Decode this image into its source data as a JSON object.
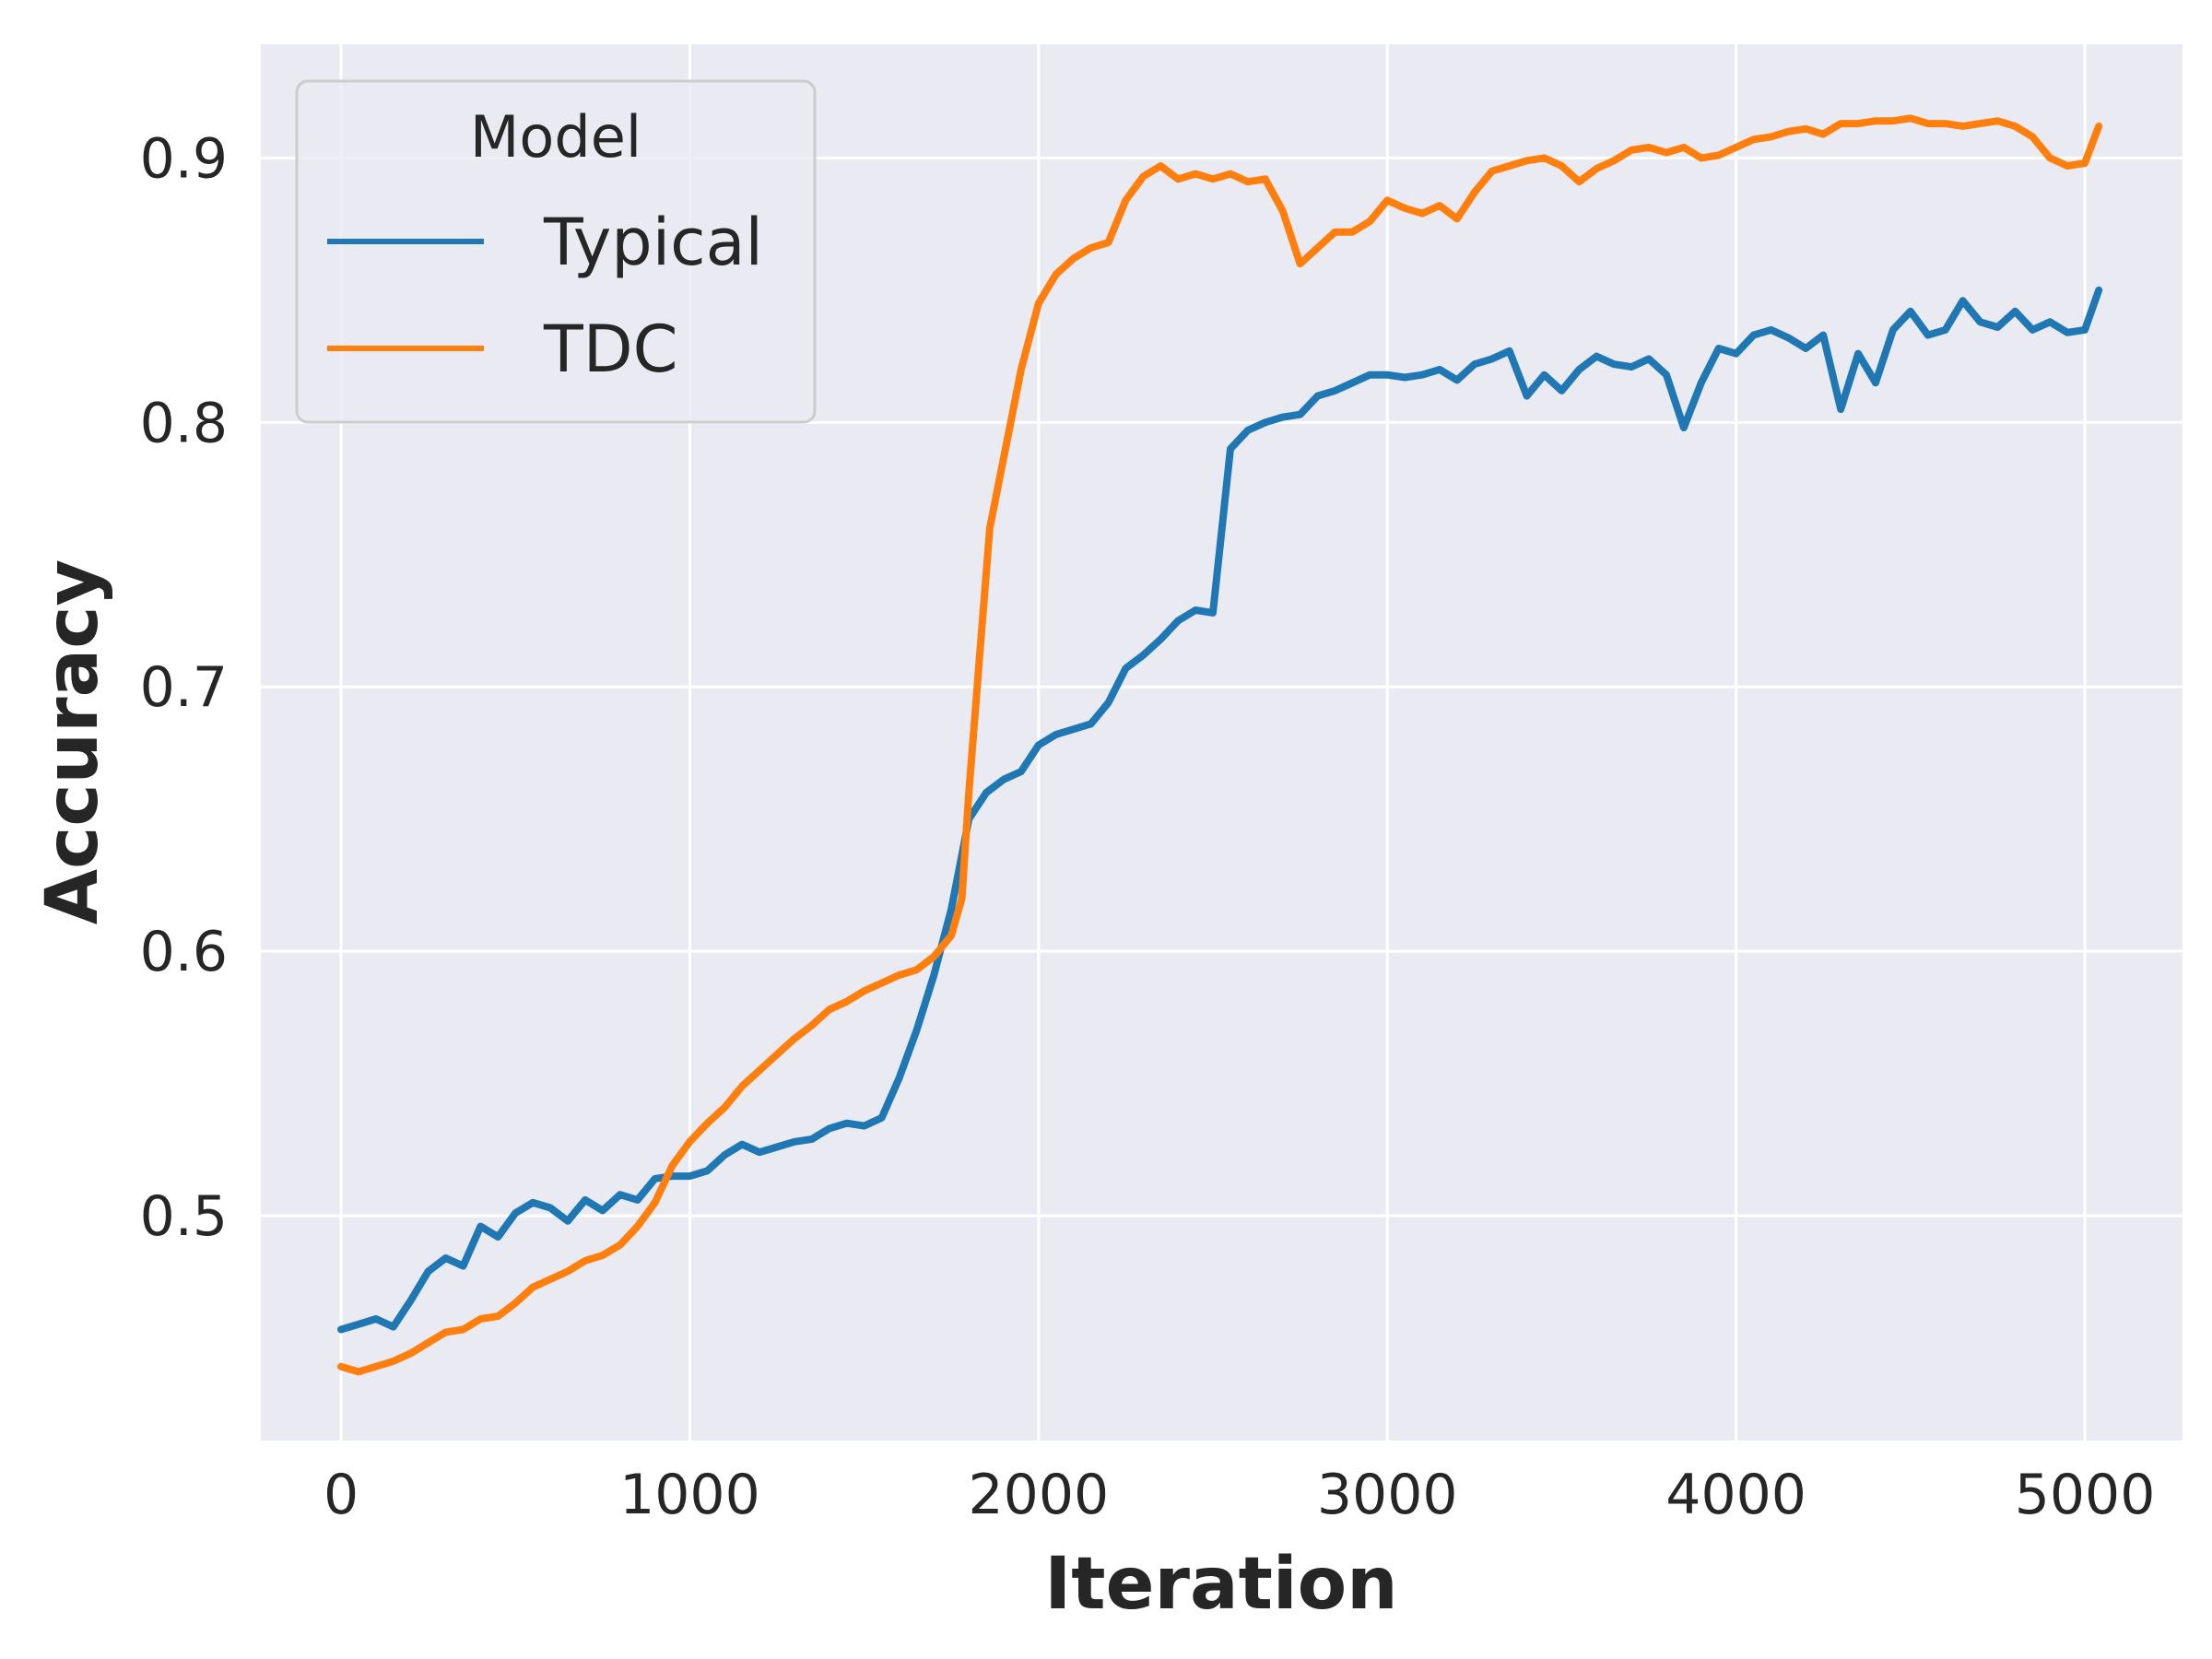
{
  "chart_data": {
    "type": "line",
    "title": "",
    "xlabel": "Iteration",
    "ylabel": "Accuracy",
    "xlim": [
      -230,
      5280
    ],
    "ylim": [
      0.415,
      0.943
    ],
    "xticks": [
      0,
      1000,
      2000,
      3000,
      4000,
      5000
    ],
    "yticks": [
      0.5,
      0.6,
      0.7,
      0.8,
      0.9
    ],
    "xtick_labels": [
      "0",
      "1000",
      "2000",
      "3000",
      "4000",
      "5000"
    ],
    "ytick_labels": [
      "0.5",
      "0.6",
      "0.7",
      "0.8",
      "0.9"
    ],
    "grid": true,
    "legend": {
      "title": "Model",
      "position": "top-left"
    },
    "series": [
      {
        "name": "Typical",
        "color": "#1f77b4",
        "x": [
          0,
          50,
          100,
          150,
          200,
          250,
          300,
          350,
          400,
          450,
          500,
          550,
          600,
          650,
          700,
          750,
          800,
          850,
          900,
          950,
          1000,
          1050,
          1100,
          1150,
          1200,
          1250,
          1300,
          1350,
          1400,
          1450,
          1500,
          1550,
          1600,
          1650,
          1700,
          1750,
          1800,
          1850,
          1900,
          1950,
          2000,
          2050,
          2100,
          2150,
          2200,
          2250,
          2300,
          2350,
          2400,
          2450,
          2500,
          2550,
          2600,
          2650,
          2700,
          2750,
          2800,
          2850,
          2900,
          2950,
          3000,
          3050,
          3100,
          3150,
          3200,
          3250,
          3300,
          3350,
          3400,
          3450,
          3500,
          3550,
          3600,
          3650,
          3700,
          3750,
          3800,
          3850,
          3900,
          3950,
          4000,
          4050,
          4100,
          4150,
          4200,
          4250,
          4300,
          4350,
          4400,
          4450,
          4500,
          4550,
          4600,
          4650,
          4700,
          4750,
          4800,
          4850,
          4900,
          4950,
          5000,
          5040
        ],
        "y": [
          0.457,
          0.459,
          0.461,
          0.458,
          0.468,
          0.479,
          0.484,
          0.481,
          0.496,
          0.492,
          0.501,
          0.505,
          0.503,
          0.498,
          0.506,
          0.502,
          0.508,
          0.506,
          0.514,
          0.515,
          0.515,
          0.517,
          0.523,
          0.527,
          0.524,
          0.526,
          0.528,
          0.529,
          0.533,
          0.535,
          0.534,
          0.537,
          0.552,
          0.57,
          0.591,
          0.616,
          0.65,
          0.66,
          0.665,
          0.668,
          0.678,
          0.682,
          0.684,
          0.686,
          0.694,
          0.707,
          0.712,
          0.718,
          0.725,
          0.729,
          0.728,
          0.79,
          0.797,
          0.8,
          0.802,
          0.803,
          0.81,
          0.812,
          0.815,
          0.818,
          0.818,
          0.817,
          0.818,
          0.82,
          0.816,
          0.822,
          0.824,
          0.827,
          0.81,
          0.818,
          0.812,
          0.82,
          0.825,
          0.822,
          0.821,
          0.824,
          0.818,
          0.798,
          0.815,
          0.828,
          0.826,
          0.833,
          0.835,
          0.832,
          0.828,
          0.833,
          0.805,
          0.826,
          0.815,
          0.835,
          0.842,
          0.833,
          0.835,
          0.846,
          0.838,
          0.836,
          0.842,
          0.835,
          0.838,
          0.834,
          0.835,
          0.85
        ]
      },
      {
        "name": "TDC",
        "color": "#ff7f0e",
        "x": [
          0,
          50,
          100,
          150,
          200,
          250,
          300,
          350,
          400,
          450,
          500,
          550,
          600,
          650,
          700,
          750,
          800,
          850,
          900,
          950,
          1000,
          1050,
          1100,
          1150,
          1200,
          1250,
          1300,
          1350,
          1400,
          1450,
          1500,
          1550,
          1600,
          1650,
          1700,
          1750,
          1780,
          1800,
          1830,
          1860,
          1890,
          1920,
          1950,
          2000,
          2050,
          2100,
          2150,
          2200,
          2250,
          2300,
          2350,
          2400,
          2450,
          2500,
          2550,
          2600,
          2650,
          2700,
          2750,
          2800,
          2850,
          2900,
          2950,
          3000,
          3050,
          3100,
          3150,
          3200,
          3250,
          3300,
          3350,
          3400,
          3450,
          3500,
          3550,
          3600,
          3650,
          3700,
          3750,
          3800,
          3850,
          3900,
          3950,
          4000,
          4050,
          4100,
          4150,
          4200,
          4250,
          4300,
          4350,
          4400,
          4450,
          4500,
          4550,
          4600,
          4650,
          4700,
          4750,
          4800,
          4850,
          4900,
          4950,
          5000,
          5040
        ],
        "y": [
          0.443,
          0.441,
          0.443,
          0.445,
          0.448,
          0.452,
          0.456,
          0.457,
          0.461,
          0.462,
          0.467,
          0.473,
          0.476,
          0.479,
          0.483,
          0.485,
          0.489,
          0.496,
          0.505,
          0.519,
          0.528,
          0.535,
          0.541,
          0.549,
          0.555,
          0.561,
          0.567,
          0.572,
          0.578,
          0.581,
          0.585,
          0.588,
          0.591,
          0.593,
          0.598,
          0.606,
          0.62,
          0.66,
          0.71,
          0.76,
          0.78,
          0.8,
          0.82,
          0.845,
          0.856,
          0.862,
          0.866,
          0.868,
          0.884,
          0.893,
          0.897,
          0.892,
          0.894,
          0.892,
          0.894,
          0.891,
          0.892,
          0.88,
          0.86,
          0.866,
          0.872,
          0.872,
          0.876,
          0.884,
          0.881,
          0.879,
          0.882,
          0.877,
          0.887,
          0.895,
          0.897,
          0.899,
          0.9,
          0.897,
          0.891,
          0.896,
          0.899,
          0.903,
          0.904,
          0.902,
          0.904,
          0.9,
          0.901,
          0.904,
          0.907,
          0.908,
          0.91,
          0.911,
          0.909,
          0.913,
          0.913,
          0.914,
          0.914,
          0.915,
          0.913,
          0.913,
          0.912,
          0.913,
          0.914,
          0.912,
          0.908,
          0.9,
          0.897,
          0.898,
          0.912
        ]
      }
    ]
  }
}
